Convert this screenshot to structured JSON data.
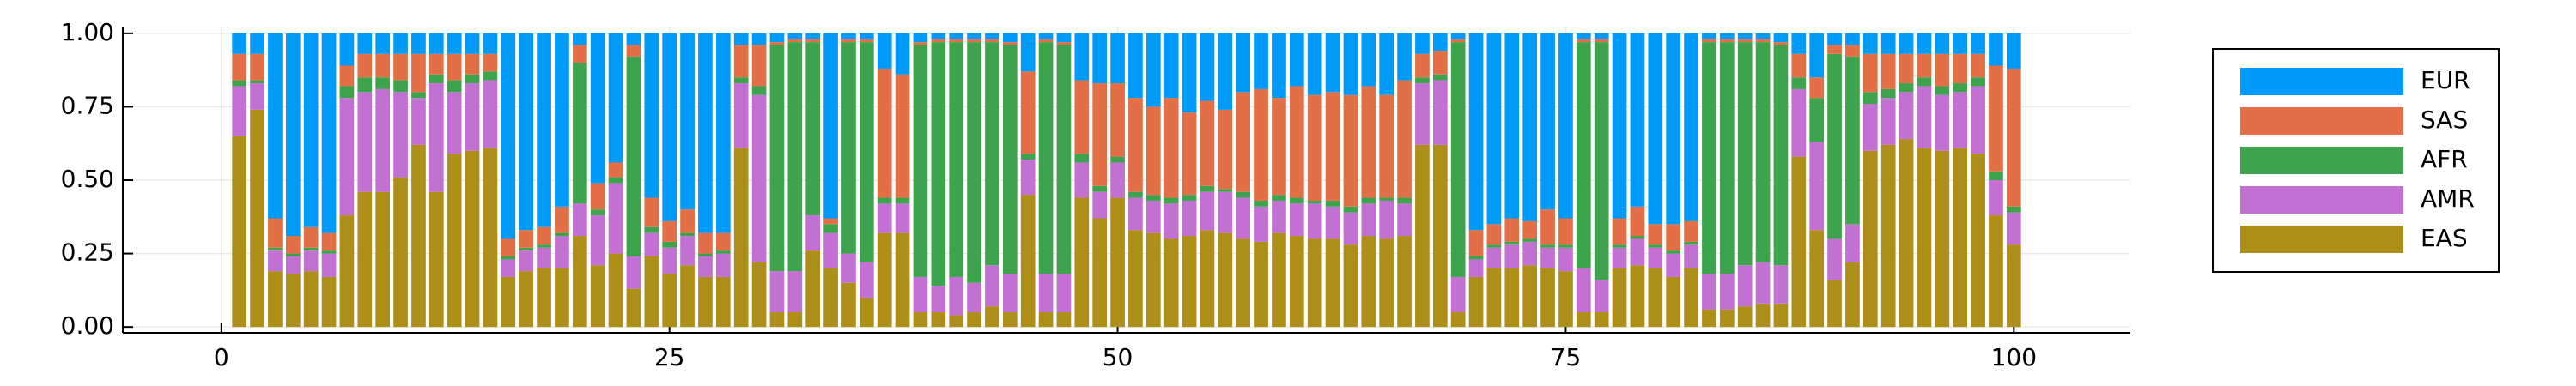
{
  "chart_data": {
    "type": "stacked_bar",
    "x": [
      1,
      2,
      3,
      4,
      5,
      6,
      7,
      8,
      9,
      10,
      11,
      12,
      13,
      14,
      15,
      16,
      17,
      18,
      19,
      20,
      21,
      22,
      23,
      24,
      25,
      26,
      27,
      28,
      29,
      30,
      31,
      32,
      33,
      34,
      35,
      36,
      37,
      38,
      39,
      40,
      41,
      42,
      43,
      44,
      45,
      46,
      47,
      48,
      49,
      50,
      51,
      52,
      53,
      54,
      55,
      56,
      57,
      58,
      59,
      60,
      61,
      62,
      63,
      64,
      65,
      66,
      67,
      68,
      69,
      70,
      71,
      72,
      73,
      74,
      75,
      76,
      77,
      78,
      79,
      80,
      81,
      82,
      83,
      84,
      85,
      86,
      87,
      88,
      89,
      90,
      91,
      92,
      93,
      94,
      95,
      96,
      97,
      98,
      99,
      100
    ],
    "series": [
      {
        "name": "EUR",
        "color": "#009af9",
        "values": [
          0.07,
          0.07,
          0.63,
          0.69,
          0.66,
          0.68,
          0.11,
          0.07,
          0.07,
          0.07,
          0.07,
          0.07,
          0.07,
          0.07,
          0.07,
          0.7,
          0.67,
          0.66,
          0.59,
          0.04,
          0.51,
          0.44,
          0.04,
          0.56,
          0.64,
          0.6,
          0.68,
          0.68,
          0.04,
          0.04,
          0.03,
          0.02,
          0.02,
          0.63,
          0.02,
          0.02,
          0.12,
          0.14,
          0.03,
          0.02,
          0.02,
          0.02,
          0.02,
          0.03,
          0.13,
          0.02,
          0.03,
          0.16,
          0.17,
          0.17,
          0.22,
          0.25,
          0.22,
          0.27,
          0.23,
          0.26,
          0.2,
          0.19,
          0.22,
          0.18,
          0.21,
          0.2,
          0.21,
          0.18,
          0.21,
          0.16,
          0.07,
          0.06,
          0.02,
          0.67,
          0.65,
          0.63,
          0.64,
          0.6,
          0.63,
          0.02,
          0.02,
          0.63,
          0.59,
          0.65,
          0.65,
          0.64,
          0.02,
          0.02,
          0.02,
          0.02,
          0.03,
          0.07,
          0.15,
          0.04,
          0.04,
          0.07,
          0.07,
          0.07,
          0.07,
          0.07,
          0.07,
          0.07,
          0.11,
          0.12
        ]
      },
      {
        "name": "SAS",
        "color": "#e26f46",
        "values": [
          0.09,
          0.09,
          0.1,
          0.06,
          0.07,
          0.06,
          0.07,
          0.08,
          0.08,
          0.09,
          0.13,
          0.07,
          0.09,
          0.07,
          0.06,
          0.06,
          0.06,
          0.06,
          0.09,
          0.06,
          0.09,
          0.05,
          0.04,
          0.1,
          0.07,
          0.08,
          0.07,
          0.06,
          0.11,
          0.14,
          0.01,
          0.01,
          0.01,
          0.02,
          0.01,
          0.01,
          0.44,
          0.42,
          0.01,
          0.01,
          0.01,
          0.01,
          0.01,
          0.01,
          0.28,
          0.01,
          0.01,
          0.25,
          0.35,
          0.25,
          0.32,
          0.3,
          0.34,
          0.28,
          0.29,
          0.27,
          0.34,
          0.38,
          0.33,
          0.38,
          0.36,
          0.37,
          0.38,
          0.38,
          0.35,
          0.4,
          0.08,
          0.08,
          0.01,
          0.09,
          0.07,
          0.08,
          0.06,
          0.12,
          0.09,
          0.01,
          0.01,
          0.09,
          0.1,
          0.07,
          0.09,
          0.07,
          0.01,
          0.01,
          0.01,
          0.01,
          0.01,
          0.08,
          0.07,
          0.03,
          0.04,
          0.13,
          0.12,
          0.1,
          0.08,
          0.11,
          0.1,
          0.08,
          0.36,
          0.47
        ]
      },
      {
        "name": "AFR",
        "color": "#3da44d",
        "values": [
          0.02,
          0.01,
          0.01,
          0.01,
          0.01,
          0.01,
          0.04,
          0.05,
          0.04,
          0.04,
          0.02,
          0.03,
          0.04,
          0.03,
          0.03,
          0.01,
          0.01,
          0.01,
          0.01,
          0.48,
          0.02,
          0.02,
          0.68,
          0.02,
          0.02,
          0.01,
          0.01,
          0.01,
          0.02,
          0.03,
          0.77,
          0.78,
          0.59,
          0.03,
          0.72,
          0.75,
          0.02,
          0.02,
          0.79,
          0.83,
          0.8,
          0.82,
          0.76,
          0.78,
          0.02,
          0.79,
          0.78,
          0.03,
          0.02,
          0.02,
          0.02,
          0.02,
          0.02,
          0.02,
          0.02,
          0.01,
          0.02,
          0.02,
          0.02,
          0.02,
          0.01,
          0.02,
          0.02,
          0.02,
          0.01,
          0.02,
          0.02,
          0.02,
          0.8,
          0.01,
          0.01,
          0.01,
          0.01,
          0.01,
          0.01,
          0.77,
          0.81,
          0.01,
          0.01,
          0.01,
          0.01,
          0.01,
          0.79,
          0.79,
          0.76,
          0.75,
          0.75,
          0.04,
          0.15,
          0.63,
          0.57,
          0.04,
          0.03,
          0.03,
          0.03,
          0.03,
          0.03,
          0.03,
          0.03,
          0.02
        ]
      },
      {
        "name": "AMR",
        "color": "#c271d2",
        "values": [
          0.17,
          0.09,
          0.07,
          0.06,
          0.07,
          0.08,
          0.4,
          0.34,
          0.35,
          0.29,
          0.16,
          0.37,
          0.21,
          0.23,
          0.23,
          0.06,
          0.07,
          0.07,
          0.11,
          0.11,
          0.17,
          0.24,
          0.11,
          0.08,
          0.09,
          0.1,
          0.07,
          0.08,
          0.22,
          0.57,
          0.14,
          0.14,
          0.12,
          0.12,
          0.1,
          0.12,
          0.1,
          0.1,
          0.12,
          0.09,
          0.13,
          0.1,
          0.14,
          0.13,
          0.12,
          0.13,
          0.13,
          0.12,
          0.09,
          0.12,
          0.11,
          0.11,
          0.12,
          0.12,
          0.13,
          0.14,
          0.14,
          0.12,
          0.11,
          0.11,
          0.12,
          0.11,
          0.11,
          0.11,
          0.13,
          0.11,
          0.21,
          0.22,
          0.12,
          0.06,
          0.07,
          0.08,
          0.08,
          0.07,
          0.08,
          0.15,
          0.11,
          0.07,
          0.09,
          0.07,
          0.08,
          0.08,
          0.12,
          0.12,
          0.14,
          0.14,
          0.13,
          0.23,
          0.3,
          0.14,
          0.13,
          0.16,
          0.16,
          0.16,
          0.21,
          0.19,
          0.19,
          0.23,
          0.12,
          0.11
        ]
      },
      {
        "name": "EAS",
        "color": "#ac8e18",
        "values": [
          0.65,
          0.74,
          0.19,
          0.18,
          0.19,
          0.17,
          0.38,
          0.46,
          0.46,
          0.51,
          0.62,
          0.46,
          0.59,
          0.6,
          0.61,
          0.17,
          0.19,
          0.2,
          0.2,
          0.31,
          0.21,
          0.25,
          0.13,
          0.24,
          0.18,
          0.21,
          0.17,
          0.17,
          0.61,
          0.22,
          0.05,
          0.05,
          0.26,
          0.2,
          0.15,
          0.1,
          0.32,
          0.32,
          0.05,
          0.05,
          0.04,
          0.05,
          0.07,
          0.05,
          0.45,
          0.05,
          0.05,
          0.44,
          0.37,
          0.44,
          0.33,
          0.32,
          0.3,
          0.31,
          0.33,
          0.32,
          0.3,
          0.29,
          0.32,
          0.31,
          0.3,
          0.3,
          0.28,
          0.31,
          0.3,
          0.31,
          0.62,
          0.62,
          0.05,
          0.17,
          0.2,
          0.2,
          0.21,
          0.2,
          0.19,
          0.05,
          0.05,
          0.2,
          0.21,
          0.2,
          0.17,
          0.2,
          0.06,
          0.06,
          0.07,
          0.08,
          0.08,
          0.58,
          0.33,
          0.16,
          0.22,
          0.6,
          0.62,
          0.64,
          0.61,
          0.6,
          0.61,
          0.59,
          0.38,
          0.28
        ]
      }
    ],
    "xlim": [
      -5.5,
      106.5
    ],
    "ylim": [
      -0.02,
      1.02
    ],
    "xticks": [
      0,
      25,
      50,
      75,
      100
    ],
    "yticks": [
      {
        "value": 0,
        "label": "0.00"
      },
      {
        "value": 0.25,
        "label": "0.25"
      },
      {
        "value": 0.5,
        "label": "0.50"
      },
      {
        "value": 0.75,
        "label": "0.75"
      },
      {
        "value": 1,
        "label": "1.00"
      }
    ],
    "grid": true,
    "legend": "outer right"
  }
}
